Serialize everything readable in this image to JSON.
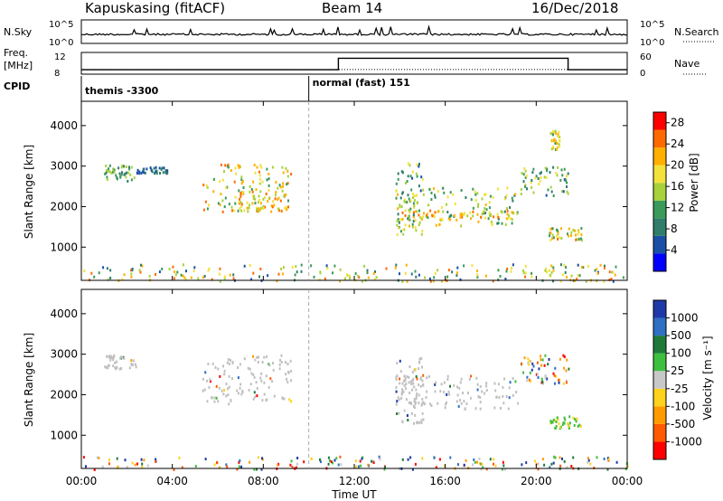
{
  "header": {
    "station": "Kapuskasing (fitACF)",
    "beam": "Beam 14",
    "date": "16/Dec/2018"
  },
  "colors": {
    "power_scale": [
      "#0000ff",
      "#1a4fa8",
      "#2f7d6a",
      "#3c9a5a",
      "#a7d23a",
      "#f2e23b",
      "#ffb000",
      "#ff6a00",
      "#ff0000"
    ],
    "velocity_scale": [
      "#1e3aa8",
      "#2f6fc4",
      "#1f7a3a",
      "#3fbf3f",
      "#c8c8c8",
      "#ffd21e",
      "#ff9b00",
      "#ff5a00",
      "#ff0000"
    ],
    "ground_scatter": "#c0c0c0"
  },
  "chart_data": [
    {
      "type": "line",
      "panel": "noise",
      "ylabel": "N.Sky",
      "ylabel_right": "N.Search",
      "ytick_labels": [
        "10^5",
        "10^0"
      ],
      "ytick_labels_right": [
        "10^5",
        "10^0"
      ],
      "xlim": [
        0,
        24
      ]
    },
    {
      "type": "line",
      "panel": "frequency",
      "ylabel": "Freq.",
      "yunit": "[MHz]",
      "ytick_labels": [
        "12",
        "8"
      ],
      "ylabel_right": "Nave",
      "ytick_labels_right": [
        "60",
        "0"
      ],
      "series": [
        {
          "name": "Freq",
          "x": [
            0,
            10,
            11.3,
            11.3,
            21.4,
            21.4,
            24
          ],
          "values": [
            9,
            9,
            9,
            11.6,
            11.6,
            9,
            9
          ]
        },
        {
          "name": "Nave",
          "x": [
            0,
            24
          ],
          "values": [
            14,
            14
          ]
        }
      ],
      "xlim": [
        0,
        24
      ]
    },
    {
      "type": "table",
      "panel": "cpid",
      "label": "CPID",
      "segments": [
        {
          "start": 0,
          "end": 10,
          "label": "themis -3300"
        },
        {
          "start": 10,
          "end": 24,
          "label": "normal (fast) 151"
        }
      ]
    },
    {
      "type": "heatmap",
      "panel": "power",
      "ylabel": "Slant Range [km]",
      "yticks": [
        1000,
        2000,
        3000,
        4000
      ],
      "ylim": [
        180,
        4600
      ],
      "xlim": [
        0,
        24
      ],
      "colorbar_label": "Power [dB]",
      "colorbar_ticks": [
        4,
        8,
        12,
        16,
        20,
        24,
        28
      ],
      "colorbar_range": [
        0,
        30
      ],
      "scatter_regions": [
        {
          "x": [
            1.0,
            2.4
          ],
          "r": [
            2650,
            3050
          ],
          "v": [
            8,
            16
          ]
        },
        {
          "x": [
            2.4,
            3.9
          ],
          "r": [
            2850,
            3000
          ],
          "v": [
            4,
            10
          ]
        },
        {
          "x": [
            5.3,
            9.2
          ],
          "r": [
            1900,
            3100
          ],
          "v": [
            10,
            26
          ]
        },
        {
          "x": [
            6.9,
            9.1
          ],
          "r": [
            1900,
            2400
          ],
          "v": [
            14,
            26
          ]
        },
        {
          "x": [
            13.8,
            19.2
          ],
          "r": [
            1550,
            2500
          ],
          "v": [
            8,
            22
          ]
        },
        {
          "x": [
            14.0,
            19.0
          ],
          "r": [
            1700,
            1950
          ],
          "v": [
            14,
            26
          ]
        },
        {
          "x": [
            13.8,
            15.0
          ],
          "r": [
            1300,
            3100
          ],
          "v": [
            6,
            20
          ]
        },
        {
          "x": [
            19.3,
            21.4
          ],
          "r": [
            2300,
            3000
          ],
          "v": [
            6,
            20
          ]
        },
        {
          "x": [
            20.5,
            22.0
          ],
          "r": [
            1200,
            1500
          ],
          "v": [
            10,
            24
          ]
        },
        {
          "x": [
            20.6,
            21.0
          ],
          "r": [
            3400,
            3900
          ],
          "v": [
            12,
            22
          ]
        },
        {
          "x": [
            0.0,
            24.0
          ],
          "r": [
            180,
            600
          ],
          "v": [
            4,
            26
          ]
        }
      ]
    },
    {
      "type": "heatmap",
      "panel": "velocity",
      "ylabel": "Slant Range [km]",
      "yticks": [
        1000,
        2000,
        3000,
        4000
      ],
      "ylim": [
        180,
        4600
      ],
      "xlim": [
        0,
        24
      ],
      "xticks": [
        0,
        4,
        8,
        12,
        16,
        20,
        24
      ],
      "xtick_labels": [
        "00:00",
        "04:00",
        "08:00",
        "12:00",
        "16:00",
        "20:00",
        "00:00"
      ],
      "xlabel": "Time UT",
      "colorbar_label": "Velocity [m s⁻¹]",
      "colorbar_ticks": [
        "1000",
        "500",
        "100",
        "25",
        "-25",
        "-100",
        "-500",
        "-1000"
      ],
      "scatter_regions": [
        {
          "x": [
            1.0,
            2.4
          ],
          "r": [
            2650,
            3000
          ],
          "c": "ground"
        },
        {
          "x": [
            5.3,
            9.2
          ],
          "r": [
            1800,
            3000
          ],
          "c": "ground"
        },
        {
          "x": [
            13.8,
            19.2
          ],
          "r": [
            1650,
            2500
          ],
          "c": "ground"
        },
        {
          "x": [
            13.8,
            15.0
          ],
          "r": [
            1300,
            3000
          ],
          "c": "ground"
        },
        {
          "x": [
            19.3,
            21.4
          ],
          "r": [
            2300,
            3000
          ],
          "c": "mix"
        },
        {
          "x": [
            20.5,
            22.0
          ],
          "r": [
            1200,
            1500
          ],
          "c": "green"
        },
        {
          "x": [
            0.0,
            24.0
          ],
          "r": [
            180,
            500
          ],
          "c": "mix"
        }
      ]
    }
  ]
}
